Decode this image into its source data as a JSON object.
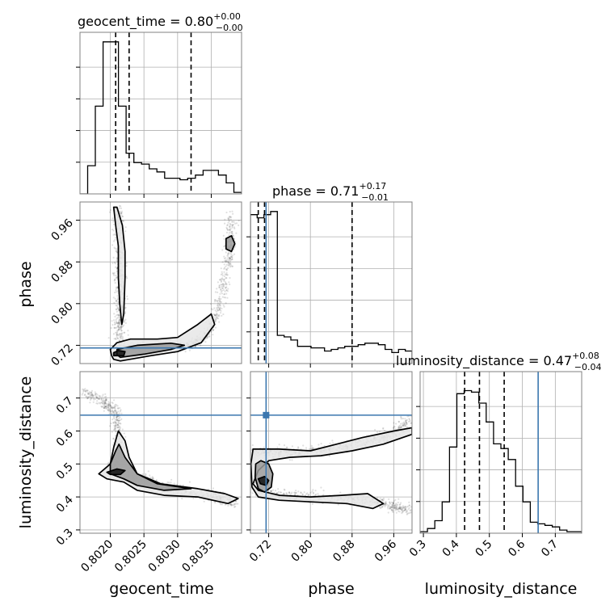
{
  "chart_data": {
    "type": "corner",
    "parameters": [
      {
        "name": "geocent_time",
        "title_value": "0.80",
        "err_plus": "+0.00",
        "err_minus": "−0.00",
        "range": [
          0.80155,
          0.80395
        ],
        "ticks": [
          0.802,
          0.8025,
          0.803,
          0.8035
        ],
        "tick_labels": [
          "0.8020",
          "0.8025",
          "0.8030",
          "0.8035"
        ],
        "quantiles": [
          0.80208,
          0.80228,
          0.8032
        ],
        "truth": null
      },
      {
        "name": "phase",
        "title_value": "0.71",
        "err_plus": "+0.17",
        "err_minus": "−0.01",
        "range": [
          0.685,
          0.995
        ],
        "ticks": [
          0.72,
          0.8,
          0.88,
          0.96
        ],
        "tick_labels": [
          "0.72",
          "0.80",
          "0.88",
          "0.96"
        ],
        "quantiles": [
          0.7,
          0.712,
          0.88
        ],
        "truth": 0.715
      },
      {
        "name": "luminosity_distance",
        "title_value": "0.47",
        "err_plus": "+0.08",
        "err_minus": "−0.04",
        "range": [
          0.29,
          0.78
        ],
        "ticks": [
          0.3,
          0.4,
          0.5,
          0.6,
          0.7
        ],
        "tick_labels": [
          "0.3",
          "0.4",
          "0.5",
          "0.6",
          "0.7"
        ],
        "quantiles": [
          0.425,
          0.47,
          0.545
        ],
        "truth": 0.648
      }
    ],
    "hist1d": {
      "geocent_time": [
        0,
        0.18,
        0.56,
        0.97,
        0.97,
        0.56,
        0.26,
        0.2,
        0.19,
        0.16,
        0.14,
        0.1,
        0.1,
        0.09,
        0.1,
        0.12,
        0.15,
        0.15,
        0.12,
        0.07,
        0.01
      ],
      "phase": [
        0.95,
        0.93,
        0.95,
        0.97,
        0.18,
        0.17,
        0.15,
        0.11,
        0.11,
        0.1,
        0.1,
        0.08,
        0.09,
        0.1,
        0.11,
        0.11,
        0.12,
        0.13,
        0.13,
        0.12,
        0.09,
        0.07,
        0.09,
        0.08
      ],
      "luminosity_distance": [
        0.01,
        0.03,
        0.08,
        0.2,
        0.55,
        0.89,
        0.91,
        0.9,
        0.83,
        0.71,
        0.57,
        0.54,
        0.47,
        0.3,
        0.2,
        0.07,
        0.06,
        0.05,
        0.04,
        0.02,
        0.01,
        0.01
      ]
    },
    "scatter_ridges": {
      "phase_vs_geocent_time": [
        [
          [
            0.80212,
            0.985
          ],
          [
            0.80213,
            0.93
          ],
          [
            0.80214,
            0.88
          ],
          [
            0.80215,
            0.84
          ],
          [
            0.80215,
            0.8
          ],
          [
            0.80214,
            0.76
          ],
          [
            0.80214,
            0.72
          ]
        ],
        [
          [
            0.80213,
            0.712
          ],
          [
            0.8024,
            0.714
          ],
          [
            0.8028,
            0.716
          ],
          [
            0.8032,
            0.72
          ],
          [
            0.80345,
            0.74
          ],
          [
            0.8036,
            0.79
          ],
          [
            0.8037,
            0.85
          ],
          [
            0.80378,
            0.91
          ],
          [
            0.8038,
            0.97
          ]
        ]
      ],
      "luminosity_distance_vs_geocent_time": [
        [
          [
            0.8016,
            0.72
          ],
          [
            0.8019,
            0.69
          ],
          [
            0.80208,
            0.66
          ],
          [
            0.80212,
            0.6
          ],
          [
            0.8021,
            0.52
          ],
          [
            0.80205,
            0.48
          ],
          [
            0.8024,
            0.46
          ],
          [
            0.8028,
            0.43
          ],
          [
            0.8033,
            0.41
          ],
          [
            0.8036,
            0.4
          ],
          [
            0.80385,
            0.38
          ]
        ]
      ],
      "luminosity_distance_vs_phase": [
        [
          [
            0.69,
            0.535
          ],
          [
            0.74,
            0.535
          ],
          [
            0.8,
            0.54
          ],
          [
            0.86,
            0.55
          ],
          [
            0.92,
            0.57
          ],
          [
            0.96,
            0.59
          ],
          [
            0.99,
            0.64
          ]
        ],
        [
          [
            0.69,
            0.43
          ],
          [
            0.72,
            0.41
          ],
          [
            0.78,
            0.4
          ],
          [
            0.85,
            0.395
          ],
          [
            0.92,
            0.385
          ],
          [
            0.96,
            0.37
          ],
          [
            0.99,
            0.36
          ]
        ]
      ]
    },
    "contours": {
      "phase_vs_geocent_time": [
        {
          "level": "outer",
          "pts": [
            [
              0.8021,
              0.985
            ],
            [
              0.80218,
              0.95
            ],
            [
              0.80222,
              0.9
            ],
            [
              0.80222,
              0.85
            ],
            [
              0.8022,
              0.78
            ],
            [
              0.80217,
              0.76
            ],
            [
              0.80214,
              0.8
            ],
            [
              0.80212,
              0.85
            ],
            [
              0.80212,
              0.91
            ],
            [
              0.80208,
              0.95
            ],
            [
              0.80205,
              0.985
            ]
          ]
        },
        {
          "level": "outer",
          "pts": [
            [
              0.80205,
              0.693
            ],
            [
              0.80215,
              0.69
            ],
            [
              0.8026,
              0.7
            ],
            [
              0.803,
              0.708
            ],
            [
              0.80335,
              0.725
            ],
            [
              0.80355,
              0.76
            ],
            [
              0.8035,
              0.78
            ],
            [
              0.8033,
              0.76
            ],
            [
              0.803,
              0.735
            ],
            [
              0.8027,
              0.732
            ],
            [
              0.8023,
              0.732
            ],
            [
              0.8021,
              0.725
            ],
            [
              0.802,
              0.712
            ],
            [
              0.80202,
              0.7
            ]
          ]
        },
        {
          "level": "mid",
          "pts": [
            [
              0.80215,
              0.697
            ],
            [
              0.8025,
              0.703
            ],
            [
              0.8029,
              0.712
            ],
            [
              0.8031,
              0.72
            ],
            [
              0.8029,
              0.724
            ],
            [
              0.8024,
              0.72
            ],
            [
              0.8021,
              0.712
            ],
            [
              0.8021,
              0.702
            ]
          ]
        },
        {
          "level": "mid",
          "pts": [
            [
              0.80372,
              0.925
            ],
            [
              0.8038,
              0.93
            ],
            [
              0.80385,
              0.915
            ],
            [
              0.8038,
              0.9
            ],
            [
              0.80372,
              0.905
            ]
          ]
        },
        {
          "level": "inner",
          "pts": [
            [
              0.80205,
              0.7
            ],
            [
              0.8022,
              0.7
            ],
            [
              0.80222,
              0.708
            ],
            [
              0.80212,
              0.71
            ],
            [
              0.80205,
              0.706
            ]
          ]
        }
      ],
      "luminosity_distance_vs_geocent_time": [
        {
          "level": "outer",
          "pts": [
            [
              0.80212,
              0.6
            ],
            [
              0.80222,
              0.57
            ],
            [
              0.80228,
              0.52
            ],
            [
              0.8024,
              0.47
            ],
            [
              0.80275,
              0.44
            ],
            [
              0.8033,
              0.425
            ],
            [
              0.8037,
              0.41
            ],
            [
              0.8039,
              0.395
            ],
            [
              0.80375,
              0.38
            ],
            [
              0.8033,
              0.4
            ],
            [
              0.8028,
              0.405
            ],
            [
              0.8024,
              0.42
            ],
            [
              0.8022,
              0.445
            ],
            [
              0.80195,
              0.455
            ],
            [
              0.80183,
              0.47
            ],
            [
              0.802,
              0.5
            ],
            [
              0.80205,
              0.55
            ]
          ]
        },
        {
          "level": "mid",
          "pts": [
            [
              0.80213,
              0.56
            ],
            [
              0.80222,
              0.52
            ],
            [
              0.8024,
              0.47
            ],
            [
              0.8027,
              0.44
            ],
            [
              0.8032,
              0.425
            ],
            [
              0.8028,
              0.42
            ],
            [
              0.8024,
              0.435
            ],
            [
              0.8022,
              0.455
            ],
            [
              0.802,
              0.47
            ],
            [
              0.802,
              0.5
            ],
            [
              0.80208,
              0.54
            ]
          ]
        },
        {
          "level": "inner",
          "pts": [
            [
              0.80195,
              0.475
            ],
            [
              0.8021,
              0.485
            ],
            [
              0.80222,
              0.48
            ],
            [
              0.80215,
              0.468
            ],
            [
              0.802,
              0.468
            ]
          ]
        }
      ],
      "luminosity_distance_vs_phase": [
        {
          "level": "outer",
          "pts": [
            [
              0.69,
              0.545
            ],
            [
              0.74,
              0.545
            ],
            [
              0.8,
              0.54
            ],
            [
              0.85,
              0.56
            ],
            [
              0.9,
              0.58
            ],
            [
              0.96,
              0.6
            ],
            [
              0.995,
              0.61
            ],
            [
              0.995,
              0.59
            ],
            [
              0.94,
              0.56
            ],
            [
              0.88,
              0.54
            ],
            [
              0.82,
              0.525
            ],
            [
              0.76,
              0.52
            ],
            [
              0.72,
              0.51
            ],
            [
              0.7,
              0.48
            ],
            [
              0.69,
              0.44
            ],
            [
              0.7,
              0.42
            ],
            [
              0.74,
              0.405
            ],
            [
              0.8,
              0.4
            ],
            [
              0.86,
              0.405
            ],
            [
              0.91,
              0.41
            ],
            [
              0.94,
              0.38
            ],
            [
              0.92,
              0.365
            ],
            [
              0.87,
              0.38
            ],
            [
              0.8,
              0.385
            ],
            [
              0.74,
              0.39
            ],
            [
              0.7,
              0.4
            ],
            [
              0.688,
              0.43
            ],
            [
              0.686,
              0.5
            ]
          ]
        },
        {
          "level": "mid",
          "pts": [
            [
              0.695,
              0.5
            ],
            [
              0.705,
              0.51
            ],
            [
              0.72,
              0.5
            ],
            [
              0.728,
              0.47
            ],
            [
              0.725,
              0.43
            ],
            [
              0.712,
              0.415
            ],
            [
              0.7,
              0.425
            ],
            [
              0.694,
              0.46
            ]
          ]
        },
        {
          "level": "inner",
          "pts": [
            [
              0.7,
              0.455
            ],
            [
              0.712,
              0.462
            ],
            [
              0.72,
              0.45
            ],
            [
              0.715,
              0.435
            ],
            [
              0.704,
              0.44
            ]
          ]
        }
      ]
    },
    "truth_color": "#3b77af",
    "grid": true
  }
}
